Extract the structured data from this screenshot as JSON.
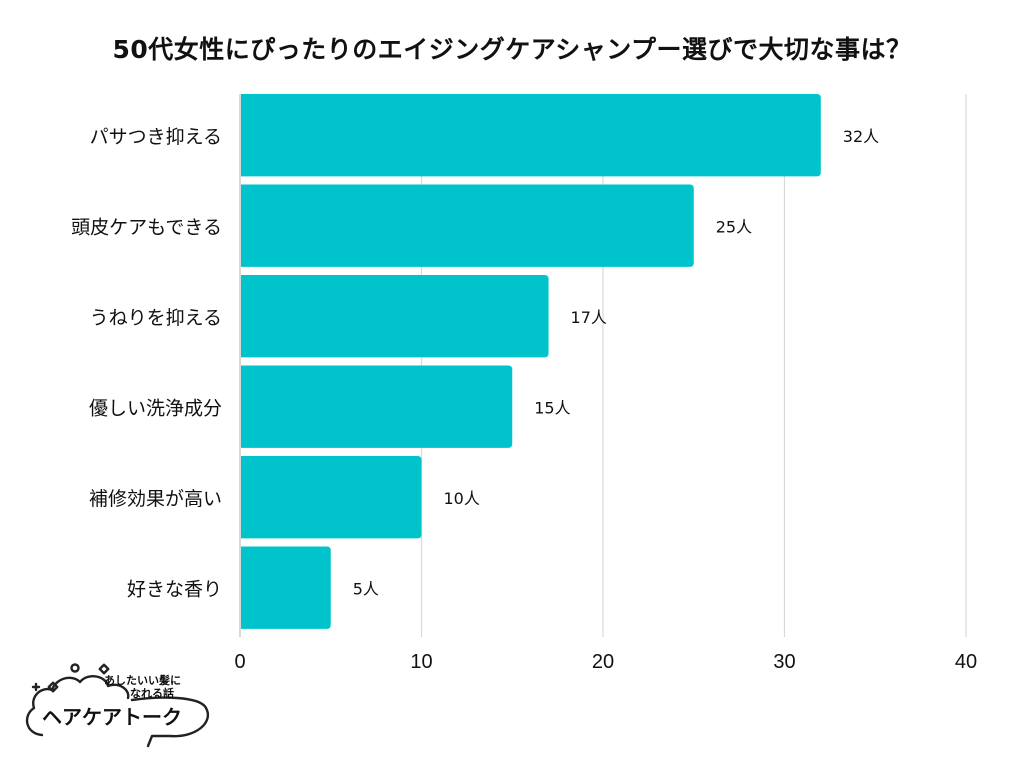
{
  "chart_data": {
    "type": "bar",
    "orientation": "horizontal",
    "title": "50代女性にぴったりのエイジングケアシャンプー選びで大切な事は？",
    "categories": [
      "パサつき抑える",
      "頭皮ケアもできる",
      "うねりを抑える",
      "優しい洗浄成分",
      "補修効果が高い",
      "好きな香り"
    ],
    "values": [
      32,
      25,
      17,
      15,
      10,
      5
    ],
    "value_labels": [
      "32人",
      "25人",
      "17人",
      "15人",
      "10人",
      "5人"
    ],
    "xlim": [
      0,
      40
    ],
    "xticks": [
      "0",
      "10",
      "20",
      "30",
      "40"
    ],
    "xtick_values": [
      0,
      10,
      20,
      30,
      40
    ],
    "grid": true,
    "bar_color": "#00c3cb",
    "grid_color": "#d9d9d9"
  },
  "logo": {
    "tagline_line1": "あしたいい髪に",
    "tagline_line2": "なれる話",
    "name": "ヘアケアトーク"
  }
}
